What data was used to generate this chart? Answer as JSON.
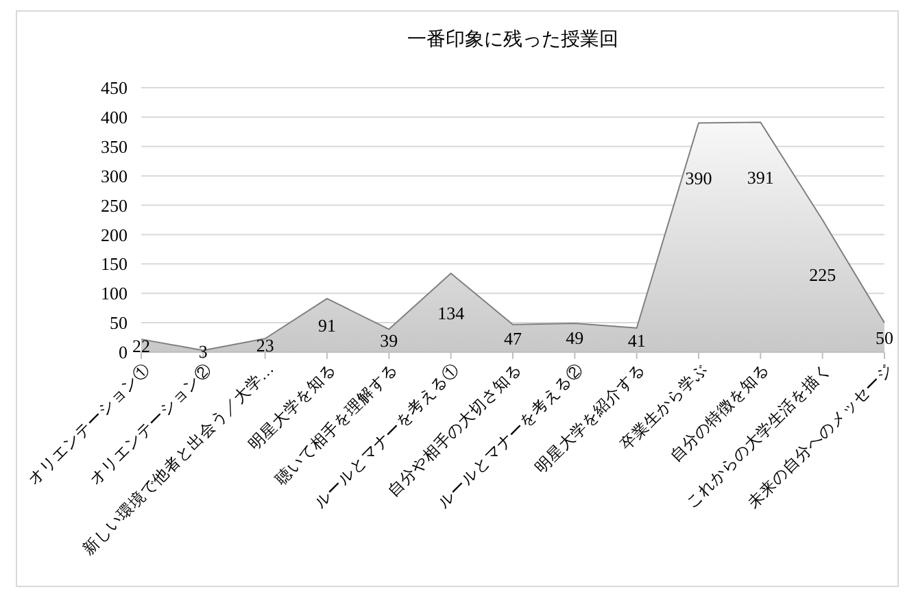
{
  "chart_data": {
    "type": "area",
    "title": "一番印象に残った授業回",
    "categories": [
      "オリエンテーション①",
      "オリエンテーション②",
      "新しい環境で他者と出会う／大学…",
      "明星大学を知る",
      "聴いて相手を理解する",
      "ルールとマナーを考える①",
      "自分や相手の大切さ知る",
      "ルールとマナーを考える②",
      "明星大学を紹介する",
      "卒業生から学ぶ",
      "自分の特徴を知る",
      "これからの大学生活を描く",
      "未来の自分へのメッセージ"
    ],
    "values": [
      22,
      3,
      23,
      91,
      39,
      134,
      47,
      49,
      41,
      390,
      391,
      225,
      50
    ],
    "color": "#c8c8c8",
    "ylim": [
      0,
      450
    ],
    "yticks": [
      0,
      50,
      100,
      150,
      200,
      250,
      300,
      350,
      400,
      450
    ],
    "grid": "y",
    "data_labels": true
  }
}
